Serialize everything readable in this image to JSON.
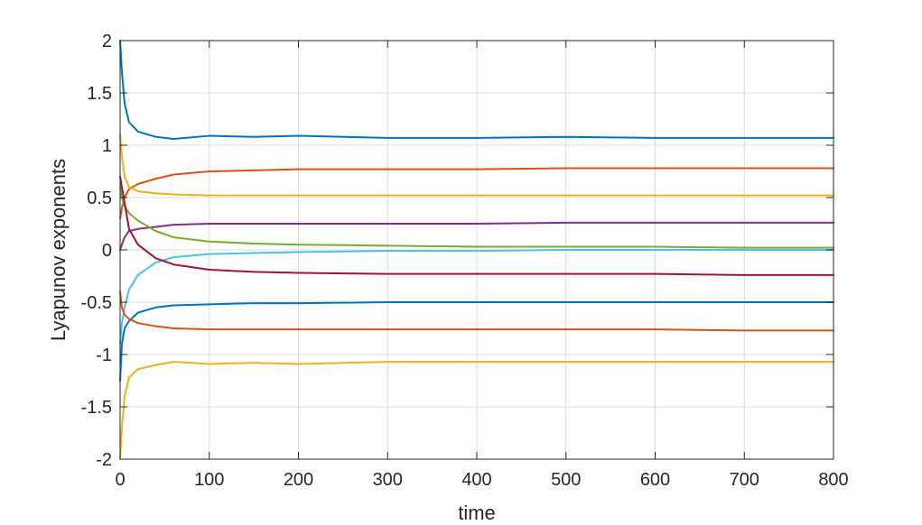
{
  "chart_data": {
    "type": "line",
    "xlabel": "time",
    "ylabel": "Lyapunov exponents",
    "xlim": [
      0,
      800
    ],
    "ylim": [
      -2,
      2
    ],
    "xticks": [
      0,
      100,
      200,
      300,
      400,
      500,
      600,
      700,
      800
    ],
    "yticks": [
      -2,
      -1.5,
      -1,
      -0.5,
      0,
      0.5,
      1,
      1.5,
      2
    ],
    "xtick_labels": [
      "0",
      "100",
      "200",
      "300",
      "400",
      "500",
      "600",
      "700",
      "800"
    ],
    "ytick_labels": [
      "-2",
      "-1.5",
      "-1",
      "-0.5",
      "0",
      "0.5",
      "1",
      "1.5",
      "2"
    ],
    "grid": true,
    "series": [
      {
        "color": "#0072BD",
        "x": [
          0,
          2,
          5,
          10,
          20,
          40,
          60,
          100,
          150,
          200,
          300,
          400,
          500,
          600,
          700,
          800
        ],
        "values": [
          2.0,
          1.7,
          1.4,
          1.22,
          1.13,
          1.08,
          1.06,
          1.09,
          1.08,
          1.09,
          1.07,
          1.07,
          1.08,
          1.07,
          1.07,
          1.07
        ]
      },
      {
        "color": "#D95319",
        "x": [
          0,
          2,
          5,
          10,
          20,
          40,
          60,
          100,
          150,
          200,
          300,
          400,
          500,
          600,
          700,
          800
        ],
        "values": [
          0.3,
          0.4,
          0.5,
          0.58,
          0.63,
          0.68,
          0.72,
          0.75,
          0.76,
          0.77,
          0.77,
          0.77,
          0.78,
          0.78,
          0.78,
          0.78
        ]
      },
      {
        "color": "#EDB120",
        "x": [
          0,
          2,
          5,
          10,
          20,
          40,
          60,
          100,
          150,
          200,
          300,
          400,
          500,
          600,
          700,
          800
        ],
        "values": [
          1.1,
          0.9,
          0.7,
          0.6,
          0.56,
          0.54,
          0.53,
          0.52,
          0.52,
          0.52,
          0.52,
          0.52,
          0.52,
          0.52,
          0.52,
          0.52
        ]
      },
      {
        "color": "#7E2F8E",
        "x": [
          0,
          2,
          5,
          10,
          20,
          40,
          60,
          100,
          150,
          200,
          300,
          400,
          500,
          600,
          700,
          800
        ],
        "values": [
          0.0,
          0.05,
          0.12,
          0.18,
          0.2,
          0.22,
          0.24,
          0.25,
          0.25,
          0.25,
          0.25,
          0.25,
          0.26,
          0.26,
          0.26,
          0.26
        ]
      },
      {
        "color": "#77AC30",
        "x": [
          0,
          2,
          5,
          10,
          20,
          40,
          60,
          100,
          150,
          200,
          300,
          400,
          500,
          600,
          700,
          800
        ],
        "values": [
          0.6,
          0.5,
          0.42,
          0.35,
          0.28,
          0.18,
          0.12,
          0.08,
          0.06,
          0.05,
          0.04,
          0.03,
          0.03,
          0.03,
          0.02,
          0.02
        ]
      },
      {
        "color": "#4DBEEE",
        "x": [
          0,
          2,
          5,
          10,
          20,
          40,
          60,
          100,
          150,
          200,
          300,
          400,
          500,
          600,
          700,
          800
        ],
        "values": [
          -0.9,
          -0.7,
          -0.55,
          -0.38,
          -0.24,
          -0.12,
          -0.07,
          -0.04,
          -0.03,
          -0.02,
          -0.01,
          -0.01,
          0.0,
          0.0,
          0.0,
          0.0
        ]
      },
      {
        "color": "#A2142F",
        "x": [
          0,
          2,
          5,
          10,
          20,
          40,
          60,
          100,
          150,
          200,
          300,
          400,
          500,
          600,
          700,
          800
        ],
        "values": [
          0.7,
          0.6,
          0.45,
          0.2,
          0.05,
          -0.08,
          -0.14,
          -0.19,
          -0.21,
          -0.22,
          -0.23,
          -0.23,
          -0.23,
          -0.23,
          -0.24,
          -0.24
        ]
      },
      {
        "color": "#0072BD",
        "x": [
          0,
          2,
          5,
          10,
          20,
          40,
          60,
          100,
          150,
          200,
          300,
          400,
          500,
          600,
          700,
          800
        ],
        "values": [
          -1.25,
          -0.9,
          -0.75,
          -0.68,
          -0.6,
          -0.55,
          -0.53,
          -0.52,
          -0.51,
          -0.51,
          -0.5,
          -0.5,
          -0.5,
          -0.5,
          -0.5,
          -0.5
        ]
      },
      {
        "color": "#D95319",
        "x": [
          0,
          2,
          5,
          10,
          20,
          40,
          60,
          100,
          150,
          200,
          300,
          400,
          500,
          600,
          700,
          800
        ],
        "values": [
          -0.4,
          -0.55,
          -0.62,
          -0.66,
          -0.7,
          -0.73,
          -0.75,
          -0.76,
          -0.76,
          -0.76,
          -0.76,
          -0.76,
          -0.76,
          -0.76,
          -0.77,
          -0.77
        ]
      },
      {
        "color": "#EDB120",
        "x": [
          0,
          2,
          5,
          10,
          20,
          40,
          60,
          100,
          150,
          200,
          300,
          400,
          500,
          600,
          700,
          800
        ],
        "values": [
          -2.0,
          -1.7,
          -1.4,
          -1.22,
          -1.14,
          -1.1,
          -1.07,
          -1.09,
          -1.08,
          -1.09,
          -1.07,
          -1.07,
          -1.07,
          -1.07,
          -1.07,
          -1.07
        ]
      }
    ]
  }
}
